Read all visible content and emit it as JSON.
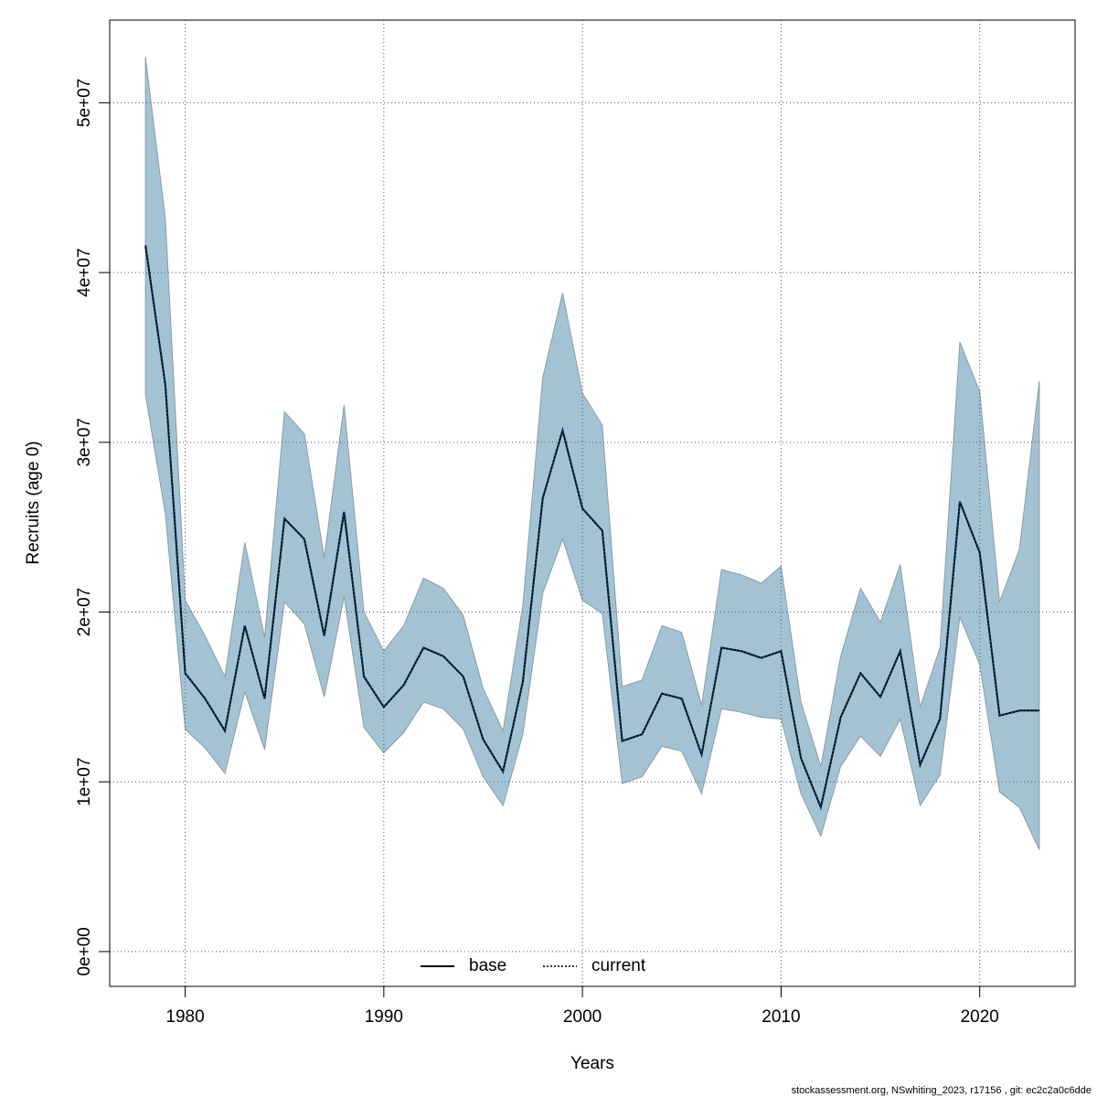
{
  "chart_data": {
    "type": "line",
    "xlabel": "Years",
    "ylabel": "Recruits (age 0)",
    "footer": "stockassessment.org, NSwhiting_2023, r17156 , git: ec2c2a0c6dde",
    "x": [
      1978,
      1979,
      1980,
      1981,
      1982,
      1983,
      1984,
      1985,
      1986,
      1987,
      1988,
      1989,
      1990,
      1991,
      1992,
      1993,
      1994,
      1995,
      1996,
      1997,
      1998,
      1999,
      2000,
      2001,
      2002,
      2003,
      2004,
      2005,
      2006,
      2007,
      2008,
      2009,
      2010,
      2011,
      2012,
      2013,
      2014,
      2015,
      2016,
      2017,
      2018,
      2019,
      2020,
      2021,
      2022,
      2023
    ],
    "series": [
      {
        "name": "base",
        "color": "#000000",
        "dash": "solid",
        "values": [
          41600000,
          33400000,
          16400000,
          14900000,
          13000000,
          19200000,
          14900000,
          25500000,
          24300000,
          18600000,
          25900000,
          16200000,
          14400000,
          15700000,
          17900000,
          17400000,
          16200000,
          12500000,
          10600000,
          15900000,
          26700000,
          30700000,
          26100000,
          24800000,
          12400000,
          12800000,
          15200000,
          14900000,
          11600000,
          17900000,
          17700000,
          17300000,
          17700000,
          11400000,
          8500000,
          13800000,
          16400000,
          15000000,
          17700000,
          11000000,
          13700000,
          26500000,
          23500000,
          13900000,
          14200000,
          14200000
        ]
      },
      {
        "name": "current",
        "color": "#0a3f6b",
        "dash": "dotted",
        "values": [
          41600000,
          33400000,
          16400000,
          14900000,
          13000000,
          19200000,
          14900000,
          25500000,
          24300000,
          18600000,
          25900000,
          16200000,
          14400000,
          15700000,
          17900000,
          17400000,
          16200000,
          12500000,
          10600000,
          15900000,
          26700000,
          30700000,
          26100000,
          24800000,
          12400000,
          12800000,
          15200000,
          14900000,
          11600000,
          17900000,
          17700000,
          17300000,
          17700000,
          11400000,
          8500000,
          13800000,
          16400000,
          15000000,
          17700000,
          11000000,
          13700000,
          26500000,
          23500000,
          13900000,
          14200000,
          14200000
        ]
      }
    ],
    "band": {
      "color": "#a3c3d4",
      "upper": [
        52700000,
        43200000,
        20700000,
        18600000,
        16200000,
        24100000,
        18500000,
        31800000,
        30500000,
        23200000,
        32200000,
        20000000,
        17700000,
        19200000,
        22000000,
        21400000,
        19800000,
        15500000,
        13000000,
        20400000,
        33800000,
        38800000,
        32900000,
        31000000,
        15600000,
        16000000,
        19200000,
        18800000,
        14500000,
        22500000,
        22200000,
        21700000,
        22700000,
        14700000,
        10900000,
        17400000,
        21400000,
        19400000,
        22800000,
        14400000,
        17900000,
        35900000,
        33000000,
        20600000,
        23700000,
        33600000
      ],
      "lower": [
        32800000,
        25800000,
        13100000,
        12000000,
        10500000,
        15300000,
        11900000,
        20600000,
        19300000,
        15000000,
        20900000,
        13200000,
        11700000,
        12900000,
        14700000,
        14300000,
        13100000,
        10300000,
        8600000,
        12800000,
        21100000,
        24300000,
        20700000,
        19900000,
        9900000,
        10300000,
        12100000,
        11800000,
        9300000,
        14300000,
        14100000,
        13800000,
        13700000,
        9300000,
        6800000,
        10900000,
        12700000,
        11500000,
        13700000,
        8600000,
        10400000,
        19700000,
        16900000,
        9400000,
        8500000,
        6000000
      ]
    },
    "xlim": [
      1976.2,
      2024.8
    ],
    "ylim": [
      -2050000,
      54870000
    ],
    "xticks": [
      1980,
      1990,
      2000,
      2010,
      2020
    ],
    "yticks": [
      {
        "value": 0,
        "label": "0e+00"
      },
      {
        "value": 10000000,
        "label": "1e+07"
      },
      {
        "value": 20000000,
        "label": "2e+07"
      },
      {
        "value": 30000000,
        "label": "3e+07"
      },
      {
        "value": 40000000,
        "label": "4e+07"
      },
      {
        "value": 50000000,
        "label": "5e+07"
      }
    ],
    "grid": true,
    "legend": "bottom"
  }
}
